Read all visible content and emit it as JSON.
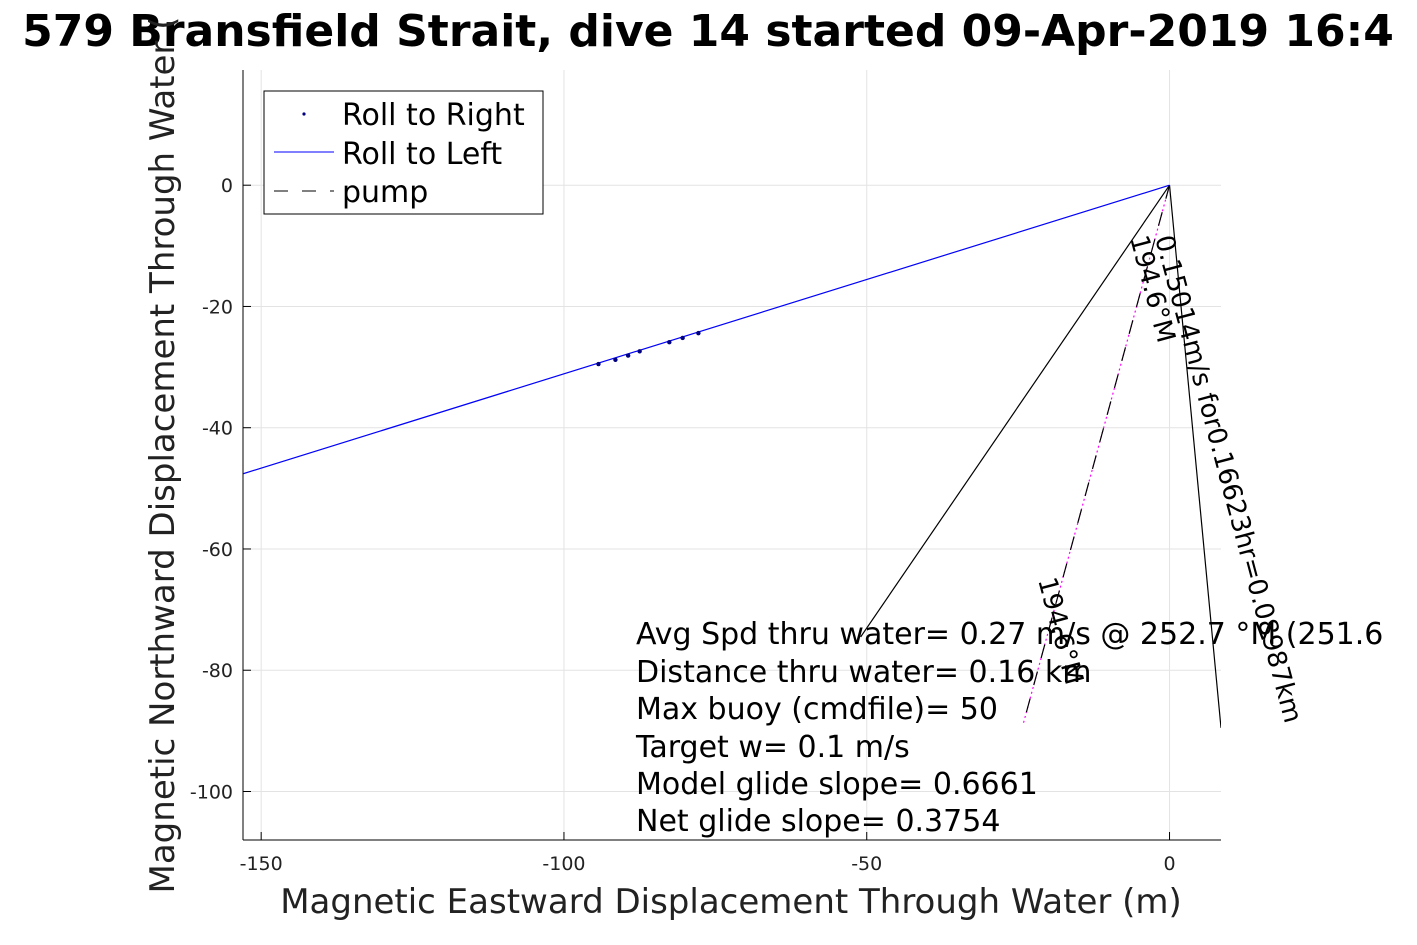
{
  "chart_data": {
    "type": "line",
    "title": "579 Bransfield Strait, dive 14 started 09-Apr-2019 16:4",
    "xlabel": "Magnetic Eastward Displacement Through Water (m)",
    "ylabel": "Magnetic Northward Displacement Through Water (",
    "xlim": [
      -153,
      8.5
    ],
    "ylim": [
      -108,
      19
    ],
    "xticks": [
      -150,
      -100,
      -50,
      0
    ],
    "yticks": [
      0,
      -20,
      -40,
      -60,
      -80,
      -100
    ],
    "xtick_labels": [
      "-150",
      "-100",
      "-50",
      "0"
    ],
    "ytick_labels": [
      "0",
      "-20",
      "-40",
      "-60",
      "-80",
      "-100"
    ],
    "grid": true,
    "legend": {
      "position": "top-left",
      "entries": [
        "Roll to Right",
        "Roll to Left",
        "pump"
      ]
    },
    "series": [
      {
        "name": "Roll to Right",
        "style": "points",
        "color": "#000080",
        "x": [
          -94.3,
          -91.5,
          -89.4,
          -87.5,
          -82.6,
          -80.4,
          -77.8
        ],
        "y": [
          -29.5,
          -28.8,
          -28.1,
          -27.4,
          -25.9,
          -25.2,
          -24.4
        ]
      },
      {
        "name": "Roll to Left",
        "style": "solid",
        "color": "#0000ff",
        "x": [
          0,
          -153
        ],
        "y": [
          0,
          -47.6
        ]
      },
      {
        "name": "pump",
        "style": "dashed",
        "color": "#000000",
        "x": [
          0,
          -24.2
        ],
        "y": [
          0,
          -89
        ]
      }
    ],
    "extra_lines": [
      {
        "color": "#000000",
        "x": [
          0,
          -51
        ],
        "y": [
          0,
          -74.5
        ]
      },
      {
        "color": "#000000",
        "x": [
          0,
          8.5
        ],
        "y": [
          0,
          -89.5
        ]
      },
      {
        "color": "#ff00ff",
        "style": "dotted",
        "x": [
          0,
          -24.2
        ],
        "y": [
          0,
          -89
        ]
      }
    ],
    "annotations": [
      {
        "text": "Avg Spd thru water=  0.27 m/s @ 252.7 °M (251.6"
      },
      {
        "text": "Distance thru water=  0.16 km"
      },
      {
        "text": "Max buoy (cmdfile)= 50"
      },
      {
        "text": "Target w= 0.1 m/s"
      },
      {
        "text": "Model glide slope= 0.6661"
      },
      {
        "text": "Net glide slope= 0.3754"
      }
    ],
    "rotated_labels": [
      {
        "text": "0.15014m/s for0.16623hr=0.08987km"
      },
      {
        "text": "194.6°M"
      },
      {
        "text": "194.6°M"
      }
    ]
  }
}
